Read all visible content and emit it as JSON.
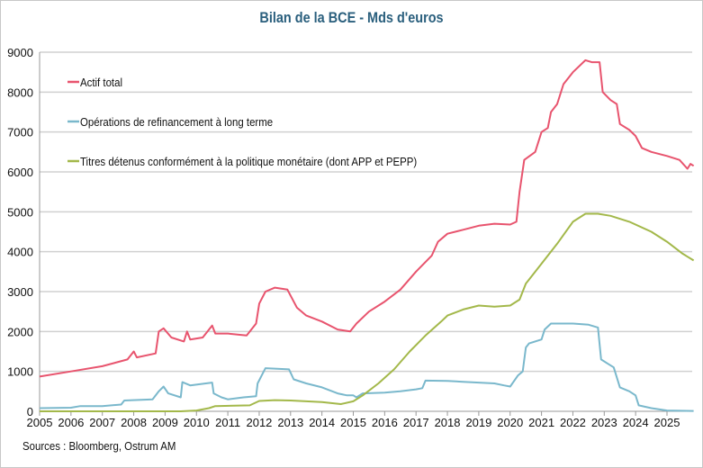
{
  "chart_data": {
    "type": "line",
    "title": "Bilan de la BCE - Mds d'euros",
    "xlabel": "",
    "ylabel": "",
    "xlim": [
      2005,
      2025.85
    ],
    "ylim": [
      0,
      9000
    ],
    "yticks": [
      0,
      1000,
      2000,
      3000,
      4000,
      5000,
      6000,
      7000,
      8000,
      9000
    ],
    "xticks": [
      2005,
      2006,
      2007,
      2008,
      2009,
      2010,
      2011,
      2012,
      2013,
      2014,
      2015,
      2016,
      2017,
      2018,
      2019,
      2020,
      2021,
      2022,
      2023,
      2024,
      2025
    ],
    "grid": "horizontal",
    "legend_position": "top-left",
    "series": [
      {
        "name": "Actif total",
        "color": "#e8546e",
        "x": [
          2005,
          2006,
          2007,
          2007.8,
          2008.0,
          2008.1,
          2008.7,
          2008.8,
          2008.95,
          2009.2,
          2009.6,
          2009.7,
          2009.8,
          2010.2,
          2010.5,
          2010.6,
          2011,
          2011.6,
          2011.9,
          2012.0,
          2012.2,
          2012.5,
          2012.9,
          2013.2,
          2013.5,
          2014.0,
          2014.5,
          2014.9,
          2015.1,
          2015.5,
          2016,
          2016.5,
          2017,
          2017.5,
          2017.7,
          2018,
          2018.5,
          2019,
          2019.5,
          2020.0,
          2020.2,
          2020.3,
          2020.45,
          2020.8,
          2021,
          2021.2,
          2021.3,
          2021.5,
          2021.7,
          2022,
          2022.4,
          2022.6,
          2022.85,
          2022.95,
          2023.2,
          2023.4,
          2023.5,
          2023.8,
          2024,
          2024.2,
          2024.5,
          2025,
          2025.4,
          2025.65,
          2025.75,
          2025.85
        ],
        "y": [
          870,
          1000,
          1130,
          1300,
          1500,
          1350,
          1450,
          2000,
          2080,
          1850,
          1750,
          2000,
          1800,
          1850,
          2150,
          1950,
          1950,
          1900,
          2200,
          2700,
          3000,
          3100,
          3050,
          2600,
          2400,
          2250,
          2050,
          2000,
          2200,
          2500,
          2750,
          3050,
          3500,
          3900,
          4250,
          4450,
          4550,
          4650,
          4700,
          4680,
          4750,
          5500,
          6300,
          6500,
          7000,
          7100,
          7500,
          7700,
          8200,
          8500,
          8800,
          8750,
          8750,
          8000,
          7800,
          7700,
          7200,
          7050,
          6900,
          6600,
          6500,
          6400,
          6300,
          6080,
          6200,
          6150
        ]
      },
      {
        "name": "Opérations de refinancement à long terme",
        "color": "#7ab8cc",
        "x": [
          2005,
          2006,
          2006.3,
          2007,
          2007.6,
          2007.7,
          2008.6,
          2008.8,
          2008.95,
          2009.1,
          2009.5,
          2009.55,
          2009.8,
          2010.3,
          2010.5,
          2010.55,
          2010.8,
          2011,
          2011.5,
          2011.9,
          2011.95,
          2012.2,
          2012.5,
          2012.95,
          2013.1,
          2013.5,
          2014,
          2014.5,
          2014.8,
          2015.0,
          2015.1,
          2015.3,
          2016,
          2016.5,
          2017,
          2017.2,
          2017.3,
          2018,
          2018.5,
          2019,
          2019.5,
          2019.8,
          2020.0,
          2020.25,
          2020.4,
          2020.5,
          2020.6,
          2021,
          2021.1,
          2021.3,
          2022,
          2022.5,
          2022.8,
          2022.9,
          2023.1,
          2023.3,
          2023.5,
          2023.8,
          2024,
          2024.1,
          2024.5,
          2025,
          2025.85
        ],
        "y": [
          80,
          90,
          130,
          130,
          170,
          270,
          300,
          500,
          620,
          450,
          350,
          730,
          650,
          700,
          720,
          450,
          350,
          300,
          350,
          380,
          700,
          1080,
          1070,
          1050,
          800,
          700,
          600,
          450,
          400,
          400,
          350,
          450,
          470,
          500,
          550,
          580,
          770,
          760,
          740,
          720,
          700,
          650,
          620,
          900,
          1000,
          1600,
          1700,
          1800,
          2050,
          2200,
          2200,
          2170,
          2100,
          1300,
          1200,
          1100,
          600,
          500,
          400,
          150,
          80,
          20,
          10
        ]
      },
      {
        "name": "Titres détenus conformément à la politique monétaire (dont APP et PEPP)",
        "color": "#a3b84a",
        "x": [
          2005,
          2009.5,
          2010,
          2010.4,
          2010.6,
          2011.7,
          2012.0,
          2012.5,
          2013,
          2014,
          2014.6,
          2015,
          2015.3,
          2015.8,
          2016.3,
          2016.8,
          2017.3,
          2017.8,
          2018,
          2018.5,
          2019,
          2019.5,
          2020,
          2020.3,
          2020.5,
          2021,
          2021.5,
          2022,
          2022.4,
          2022.8,
          2023.2,
          2023.8,
          2024.5,
          2025,
          2025.5,
          2025.85
        ],
        "y": [
          0,
          0,
          20,
          80,
          130,
          150,
          260,
          280,
          270,
          230,
          180,
          250,
          400,
          700,
          1050,
          1500,
          1900,
          2250,
          2400,
          2550,
          2650,
          2620,
          2650,
          2800,
          3200,
          3700,
          4200,
          4750,
          4950,
          4950,
          4900,
          4750,
          4500,
          4250,
          3950,
          3780
        ]
      }
    ]
  },
  "source": "Sources : Bloomberg,  Ostrum AM"
}
